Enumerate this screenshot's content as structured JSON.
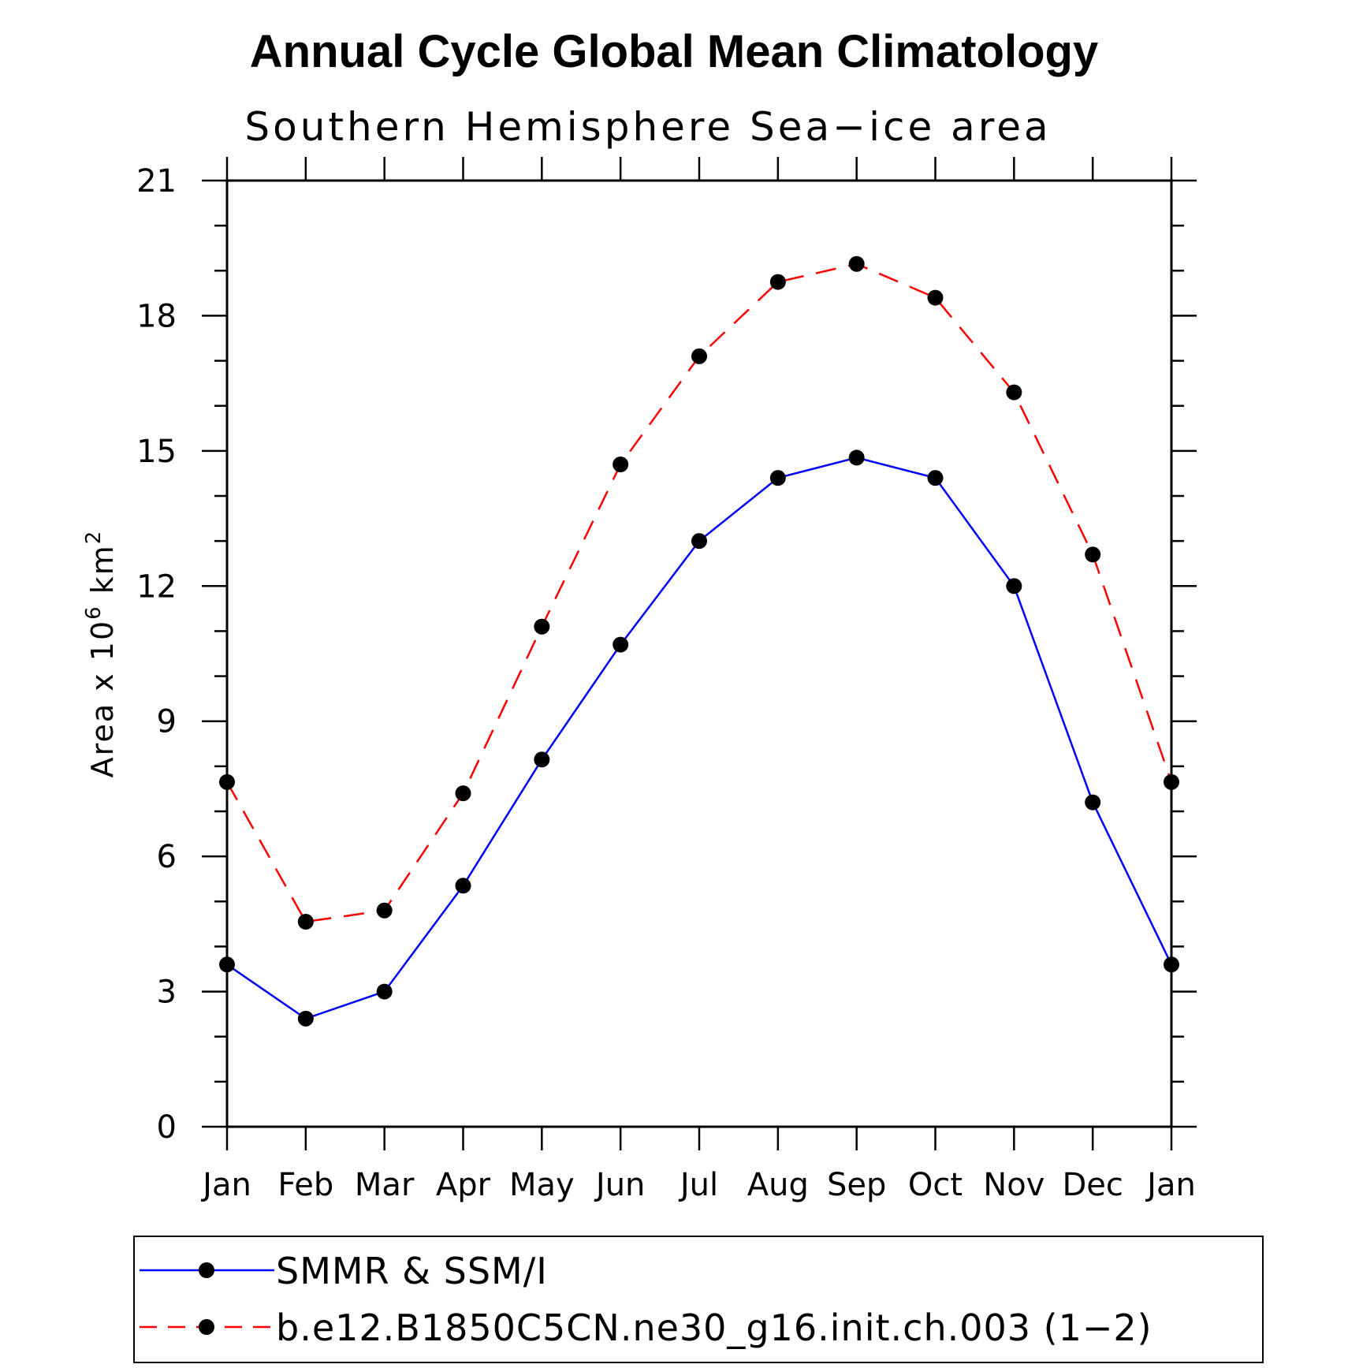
{
  "colors": {
    "observed": "#0000ff",
    "model": "#ff0000",
    "marker": "#000000",
    "axis": "#000000"
  },
  "chart_data": {
    "type": "line",
    "title": "Annual Cycle Global Mean Climatology",
    "subtitle": "Southern Hemisphere Sea−ice area",
    "ylabel": "Area x 10",
    "ylabel_sup": "6",
    "ylabel_unit": " km",
    "ylabel_unit_sup": "2",
    "xlabel": "",
    "categories": [
      "Jan",
      "Feb",
      "Mar",
      "Apr",
      "May",
      "Jun",
      "Jul",
      "Aug",
      "Sep",
      "Oct",
      "Nov",
      "Dec",
      "Jan"
    ],
    "ylim": [
      0,
      21
    ],
    "yticks": [
      0,
      3,
      6,
      9,
      12,
      15,
      18,
      21
    ],
    "grid": false,
    "legend_placement": "bottom",
    "series": [
      {
        "name": "SMMR & SSM/I",
        "line_style": "solid",
        "color": "#0000ff",
        "values": [
          3.6,
          2.4,
          3.0,
          5.35,
          8.15,
          10.7,
          13.0,
          14.4,
          14.85,
          14.4,
          12.0,
          7.2,
          3.6
        ]
      },
      {
        "name": "b.e12.B1850C5CN.ne30_g16.init.ch.003 (1−2)",
        "line_style": "dashed",
        "color": "#ff0000",
        "values": [
          7.65,
          4.55,
          4.8,
          7.4,
          11.1,
          14.7,
          17.1,
          18.75,
          19.15,
          18.4,
          16.3,
          12.7,
          7.65
        ]
      }
    ]
  }
}
